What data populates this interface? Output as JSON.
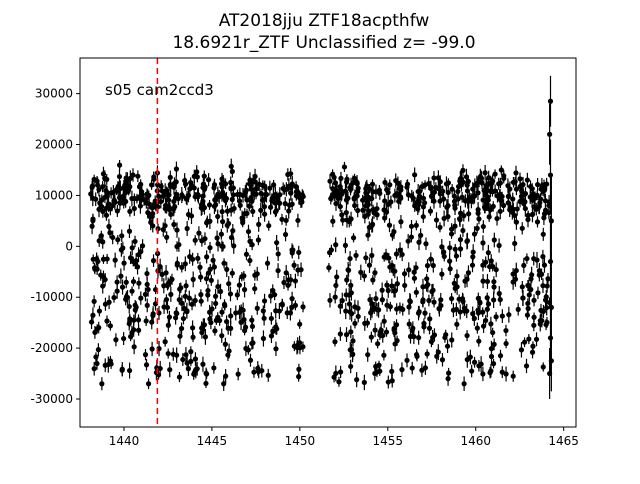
{
  "chart_data": {
    "type": "scatter",
    "title": "AT2018jju  ZTF18acpthfw",
    "subtitle": "18.6921r_ZTF Unclassified z= -99.0",
    "xlabel": "",
    "ylabel": "",
    "annotation": "s05 cam2ccd3",
    "xlim": [
      1437.5,
      1465.7
    ],
    "ylim": [
      -35500,
      37000
    ],
    "x_ticks": [
      1440,
      1445,
      1450,
      1455,
      1460,
      1465
    ],
    "y_ticks": [
      -30000,
      -20000,
      -10000,
      0,
      10000,
      20000,
      30000
    ],
    "grid": false,
    "marker_color": "#000000",
    "vline": {
      "x": 1441.9,
      "color": "#ff0000",
      "style": "dashed"
    },
    "segments": [
      {
        "x_start": 1438.1,
        "x_end": 1450.2,
        "count": 620
      },
      {
        "x_start": 1451.6,
        "x_end": 1464.2,
        "count": 640
      }
    ],
    "bands_y": [
      11500,
      9500,
      5000,
      0,
      -4000,
      -8000,
      -12000,
      -15500,
      -19000,
      -24000
    ],
    "tail_points": [
      {
        "x": 1464.25,
        "y": 28500,
        "err": 5000
      },
      {
        "x": 1464.2,
        "y": 22000,
        "err": 6000
      },
      {
        "x": 1464.25,
        "y": 14000,
        "err": 7000
      },
      {
        "x": 1464.3,
        "y": 5000,
        "err": 9000
      },
      {
        "x": 1464.25,
        "y": -3000,
        "err": 9000
      },
      {
        "x": 1464.3,
        "y": -12000,
        "err": 8000
      },
      {
        "x": 1464.25,
        "y": -18000,
        "err": 7000
      },
      {
        "x": 1464.3,
        "y": -22500,
        "err": 6000
      },
      {
        "x": 1464.2,
        "y": -25000,
        "err": 5000
      }
    ]
  }
}
